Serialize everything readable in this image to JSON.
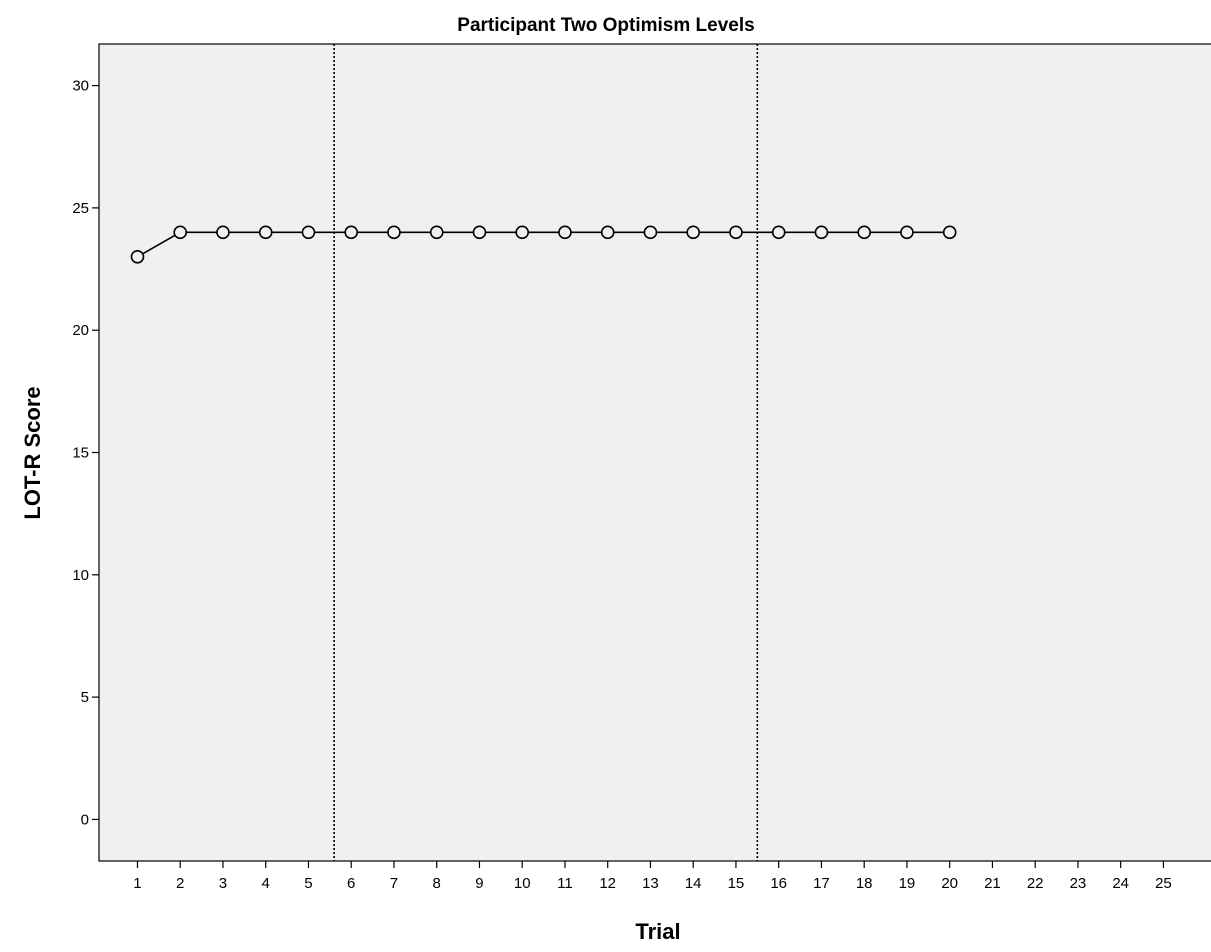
{
  "chart_data": {
    "type": "line",
    "title": "Participant Two Optimism Levels",
    "xlabel": "Trial",
    "ylabel": "LOT-R Score",
    "x_ticks": [
      1,
      2,
      3,
      4,
      5,
      6,
      7,
      8,
      9,
      10,
      11,
      12,
      13,
      14,
      15,
      16,
      17,
      18,
      19,
      20,
      21,
      22,
      23,
      24,
      25
    ],
    "y_ticks": [
      0,
      5,
      10,
      15,
      20,
      25,
      30
    ],
    "xlim": [
      0.1,
      26.3
    ],
    "ylim": [
      -1.7,
      31.7
    ],
    "x": [
      1,
      2,
      3,
      4,
      5,
      6,
      7,
      8,
      9,
      10,
      11,
      12,
      13,
      14,
      15,
      16,
      17,
      18,
      19,
      20
    ],
    "values": [
      23,
      24,
      24,
      24,
      24,
      24,
      24,
      24,
      24,
      24,
      24,
      24,
      24,
      24,
      24,
      24,
      24,
      24,
      24,
      24
    ],
    "phase_change_lines": [
      5.6,
      15.5
    ],
    "marker": "open-circle",
    "line_color": "#000000",
    "plot_background": "#f0f0f0",
    "grid": false
  }
}
